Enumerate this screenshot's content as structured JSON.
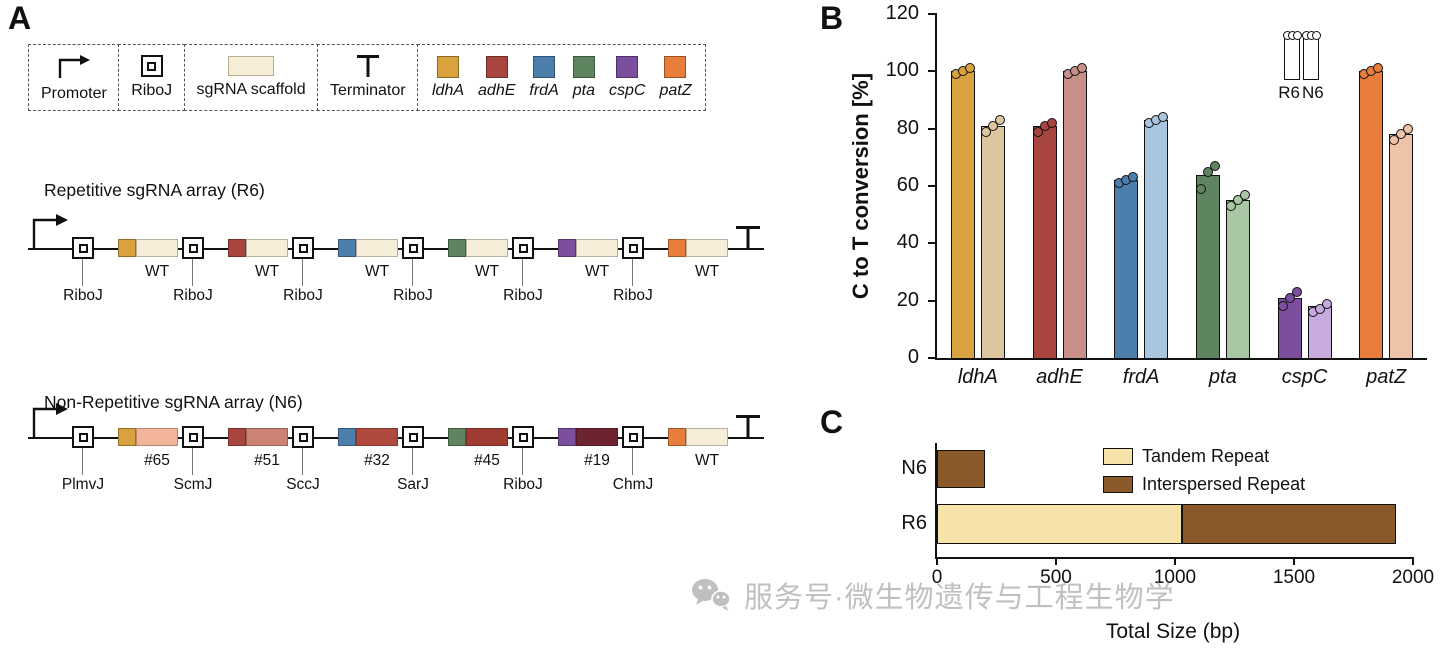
{
  "panels": {
    "a": "A",
    "b": "B",
    "c": "C"
  },
  "panelA": {
    "legend": {
      "promoter": "Promoter",
      "riboj": "RiboJ",
      "scaffold": "sgRNA scaffold",
      "terminator": "Terminator",
      "genes": [
        {
          "name": "ldhA",
          "color": "#D9A23F"
        },
        {
          "name": "adhE",
          "color": "#A8453F"
        },
        {
          "name": "frdA",
          "color": "#4C7FAC"
        },
        {
          "name": "pta",
          "color": "#5F8460"
        },
        {
          "name": "cspC",
          "color": "#7C4E9E"
        },
        {
          "name": "patZ",
          "color": "#E87D3C"
        }
      ]
    },
    "r6": {
      "title": "Repetitive sgRNA array (R6)",
      "units": [
        {
          "ribozyme": "RiboJ",
          "spacer_color": "#D9A23F",
          "scaffold_label": "WT",
          "scaffold_color": "#F5EDD8"
        },
        {
          "ribozyme": "RiboJ",
          "spacer_color": "#A8453F",
          "scaffold_label": "WT",
          "scaffold_color": "#F5EDD8"
        },
        {
          "ribozyme": "RiboJ",
          "spacer_color": "#4C7FAC",
          "scaffold_label": "WT",
          "scaffold_color": "#F5EDD8"
        },
        {
          "ribozyme": "RiboJ",
          "spacer_color": "#5F8460",
          "scaffold_label": "WT",
          "scaffold_color": "#F5EDD8"
        },
        {
          "ribozyme": "RiboJ",
          "spacer_color": "#7C4E9E",
          "scaffold_label": "WT",
          "scaffold_color": "#F5EDD8"
        },
        {
          "ribozyme": "RiboJ",
          "spacer_color": "#E87D3C",
          "scaffold_label": "WT",
          "scaffold_color": "#F5EDD8"
        }
      ]
    },
    "n6": {
      "title": "Non-Repetitive sgRNA array (N6)",
      "units": [
        {
          "ribozyme": "PlmvJ",
          "spacer_color": "#D9A23F",
          "scaffold_label": "#65",
          "scaffold_color": "#F2B49B"
        },
        {
          "ribozyme": "ScmJ",
          "spacer_color": "#A8453F",
          "scaffold_label": "#51",
          "scaffold_color": "#CC8373"
        },
        {
          "ribozyme": "SccJ",
          "spacer_color": "#4C7FAC",
          "scaffold_label": "#32",
          "scaffold_color": "#B04A3E"
        },
        {
          "ribozyme": "SarJ",
          "spacer_color": "#5F8460",
          "scaffold_label": "#45",
          "scaffold_color": "#A03B32"
        },
        {
          "ribozyme": "RiboJ",
          "spacer_color": "#7C4E9E",
          "scaffold_label": "#19",
          "scaffold_color": "#6E2430"
        },
        {
          "ribozyme": "ChmJ",
          "spacer_color": "#E87D3C",
          "scaffold_label": "WT",
          "scaffold_color": "#F5EDD8"
        }
      ]
    }
  },
  "panelB": {
    "legend": [
      "R6",
      "N6"
    ]
  },
  "watermark": {
    "text": "服务号·微生物遗传与工程生物学"
  },
  "chart_data": [
    {
      "panel": "B",
      "type": "bar",
      "title": "",
      "ylabel": "C to T conversion [%]",
      "ylim": [
        0,
        120
      ],
      "yticks": [
        0,
        20,
        40,
        60,
        80,
        100,
        120
      ],
      "categories": [
        "ldhA",
        "adhE",
        "frdA",
        "pta",
        "cspC",
        "patZ"
      ],
      "series": [
        {
          "name": "R6",
          "values": [
            100,
            81,
            62,
            64,
            21,
            100
          ],
          "points": [
            [
              99,
              100,
              101
            ],
            [
              79,
              81,
              82
            ],
            [
              61,
              62,
              63
            ],
            [
              59,
              65,
              67
            ],
            [
              18,
              21,
              23
            ],
            [
              99,
              100,
              101
            ]
          ],
          "colors": [
            "#D9A23F",
            "#A8453F",
            "#4C7FAC",
            "#5F8460",
            "#7C4E9E",
            "#E87D3C"
          ]
        },
        {
          "name": "N6",
          "values": [
            81,
            100,
            83,
            55,
            18,
            78
          ],
          "points": [
            [
              79,
              81,
              83
            ],
            [
              99,
              100,
              101
            ],
            [
              82,
              83,
              84
            ],
            [
              53,
              55,
              57
            ],
            [
              16,
              17,
              19
            ],
            [
              76,
              78,
              80
            ]
          ],
          "colors": [
            "#DCC69E",
            "#C9908A",
            "#A9C6DE",
            "#A9C7A5",
            "#C7AADE",
            "#EFC3A8"
          ]
        }
      ],
      "legend_position": "top-right",
      "grid": false
    },
    {
      "panel": "C",
      "type": "bar",
      "orientation": "horizontal",
      "categories": [
        "N6",
        "R6"
      ],
      "series": [
        {
          "name": "Tandem Repeat",
          "color": "#F5E3A9",
          "values": [
            0,
            1030
          ]
        },
        {
          "name": "Interspersed Repeat",
          "color": "#8B5A2B",
          "values": [
            200,
            900
          ]
        }
      ],
      "xlabel": "Total Size (bp)",
      "xlim": [
        0,
        2000
      ],
      "xticks": [
        0,
        500,
        1000,
        1500,
        2000
      ],
      "legend_position": "top-right",
      "grid": false
    }
  ]
}
